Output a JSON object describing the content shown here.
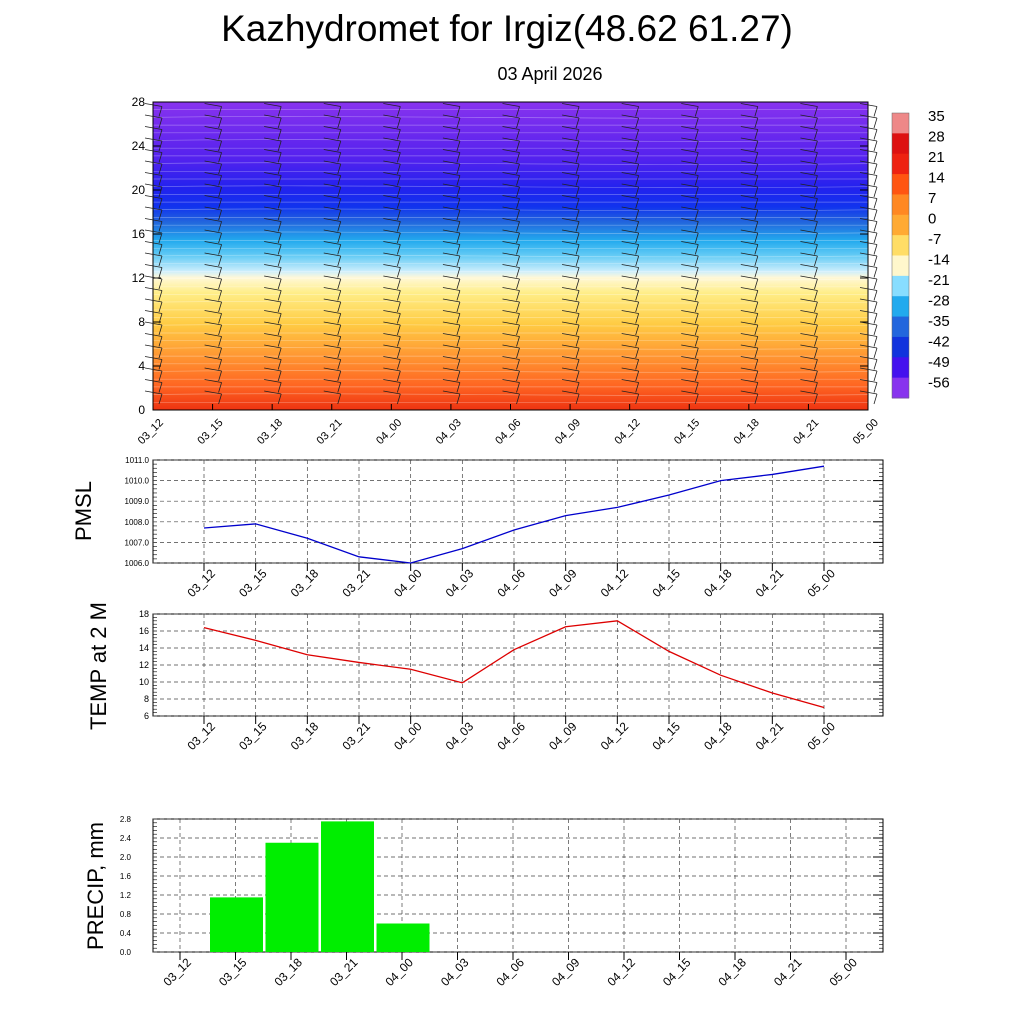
{
  "title": "Kazhydromet for Irgiz(48.62 61.27)",
  "subtitle": "03 April 2026",
  "time_labels": [
    "03_12",
    "03_15",
    "03_18",
    "03_21",
    "04_00",
    "04_03",
    "04_06",
    "04_09",
    "04_12",
    "04_15",
    "04_18",
    "04_21",
    "05_00"
  ],
  "colors": {
    "pmsl_line": "#0000cc",
    "temp_line": "#dd0000",
    "precip_bar": "#00ee00",
    "grid": "#444444"
  },
  "chart_data": [
    {
      "type": "heatmap",
      "description_of_fields": "temperature vs height (km) with wind barbs",
      "ylim": [
        0,
        28
      ],
      "y_ticks": [
        0,
        4,
        8,
        12,
        16,
        20,
        24,
        28
      ],
      "colorbar": {
        "labels": [
          "35",
          "28",
          "21",
          "14",
          "7",
          "0",
          "-7",
          "-14",
          "-21",
          "-28",
          "-35",
          "-42",
          "-49",
          "-56"
        ],
        "colors": [
          "#ee8888",
          "#dd1111",
          "#ee2211",
          "#ff5511",
          "#ff8822",
          "#ffaa33",
          "#ffdd66",
          "#fff7cc",
          "#88ddff",
          "#22aaee",
          "#2266dd",
          "#1133dd",
          "#4411ee",
          "#8833ee"
        ]
      },
      "levels": [
        {
          "height": 0,
          "temp": 14
        },
        {
          "height": 4,
          "temp": 7
        },
        {
          "height": 8,
          "temp": 0
        },
        {
          "height": 11.5,
          "temp": -10
        },
        {
          "height": 12.5,
          "temp": -16
        },
        {
          "height": 14,
          "temp": -26
        },
        {
          "height": 16,
          "temp": -40
        },
        {
          "height": 19,
          "temp": -56
        },
        {
          "height": 22,
          "temp": -52
        },
        {
          "height": 28,
          "temp": -45
        }
      ]
    },
    {
      "type": "line",
      "ylabel": "PMSL",
      "x": [
        "03_12",
        "03_15",
        "03_18",
        "03_21",
        "04_00",
        "04_03",
        "04_06",
        "04_09",
        "04_12",
        "04_15",
        "04_18",
        "04_21",
        "05_00"
      ],
      "series": [
        {
          "values": [
            1007.7,
            1007.9,
            1007.2,
            1006.3,
            1006.0,
            1006.7,
            1007.6,
            1008.3,
            1008.7,
            1009.3,
            1010.0,
            1010.3,
            1010.7
          ]
        }
      ],
      "ylim": [
        1006.0,
        1011.0
      ],
      "y_ticks": [
        "1006.0",
        "1007.0",
        "1008.0",
        "1009.0",
        "1010.0",
        "1011.0"
      ]
    },
    {
      "type": "line",
      "ylabel": "TEMP at 2 M",
      "x": [
        "03_12",
        "03_15",
        "03_18",
        "03_21",
        "04_00",
        "04_03",
        "04_06",
        "04_09",
        "04_12",
        "04_15",
        "04_18",
        "04_21",
        "05_00"
      ],
      "series": [
        {
          "values": [
            16.4,
            14.9,
            13.2,
            12.3,
            11.5,
            9.9,
            13.8,
            16.5,
            17.2,
            13.6,
            10.8,
            8.7,
            7.0
          ]
        }
      ],
      "ylim": [
        6,
        18
      ],
      "y_ticks": [
        "6",
        "8",
        "10",
        "12",
        "14",
        "16",
        "18"
      ]
    },
    {
      "type": "bar",
      "ylabel": "PRECIP, mm",
      "categories": [
        "03_12",
        "03_15",
        "03_18",
        "03_21",
        "04_00",
        "04_03",
        "04_06",
        "04_09",
        "04_12",
        "04_15",
        "04_18",
        "04_21",
        "05_00"
      ],
      "values": [
        0,
        1.15,
        2.3,
        2.75,
        0.6,
        0,
        0,
        0,
        0,
        0,
        0,
        0,
        0
      ],
      "ylim": [
        0,
        2.8
      ],
      "y_ticks": [
        "0.0",
        "0.4",
        "0.8",
        "1.2",
        "1.6",
        "2.0",
        "2.4",
        "2.8"
      ]
    }
  ]
}
